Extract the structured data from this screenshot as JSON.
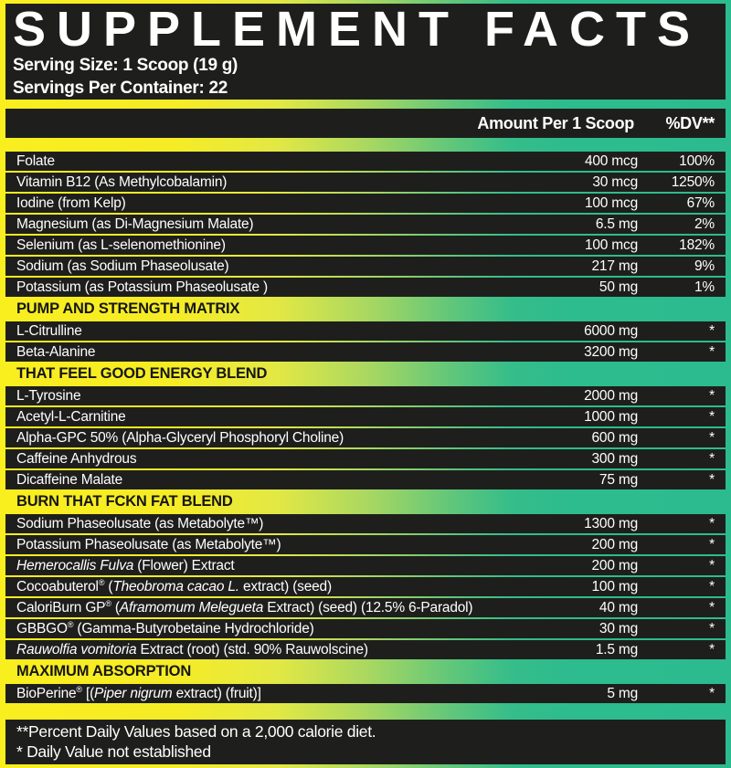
{
  "header": {
    "title": "SUPPLEMENT FACTS",
    "serving_size": "Serving Size: 1 Scoop (19 g)",
    "servings_per_container": "Servings Per Container: 22"
  },
  "columns": {
    "amount": "Amount Per 1 Scoop",
    "dv": "%DV**"
  },
  "colors": {
    "gradient_start": "#f9ee1e",
    "gradient_end": "#2cbb8f",
    "panel_black": "#1e1f1d",
    "text_white": "#ffffff",
    "section_text": "#161616"
  },
  "table": {
    "rows": [
      {
        "type": "item",
        "parts": [
          {
            "t": "Folate"
          }
        ],
        "amount": "400 mcg",
        "dv": "100%"
      },
      {
        "type": "item",
        "parts": [
          {
            "t": "Vitamin B12 (As Methylcobalamin)"
          }
        ],
        "amount": "30 mcg",
        "dv": "1250%"
      },
      {
        "type": "item",
        "parts": [
          {
            "t": "Iodine (from Kelp)"
          }
        ],
        "amount": "100 mcg",
        "dv": "67%"
      },
      {
        "type": "item",
        "parts": [
          {
            "t": "Magnesium (as Di-Magnesium Malate)"
          }
        ],
        "amount": "6.5 mg",
        "dv": "2%"
      },
      {
        "type": "item",
        "parts": [
          {
            "t": "Selenium (as L-selenomethionine)"
          }
        ],
        "amount": "100 mcg",
        "dv": "182%"
      },
      {
        "type": "item",
        "parts": [
          {
            "t": "Sodium (as Sodium Phaseolusate)"
          }
        ],
        "amount": "217 mg",
        "dv": "9%"
      },
      {
        "type": "item",
        "parts": [
          {
            "t": "Potassium (as Potassium Phaseolusate )"
          }
        ],
        "amount": "50 mg",
        "dv": "1%"
      },
      {
        "type": "section",
        "label": "PUMP AND STRENGTH MATRIX"
      },
      {
        "type": "item",
        "parts": [
          {
            "t": "L-Citrulline"
          }
        ],
        "amount": "6000 mg",
        "dv": "*"
      },
      {
        "type": "item",
        "parts": [
          {
            "t": "Beta-Alanine"
          }
        ],
        "amount": "3200 mg",
        "dv": "*"
      },
      {
        "type": "section",
        "label": "THAT FEEL GOOD ENERGY BLEND"
      },
      {
        "type": "item",
        "parts": [
          {
            "t": "L-Tyrosine"
          }
        ],
        "amount": "2000 mg",
        "dv": "*"
      },
      {
        "type": "item",
        "parts": [
          {
            "t": "Acetyl-L-Carnitine"
          }
        ],
        "amount": "1000 mg",
        "dv": "*"
      },
      {
        "type": "item",
        "parts": [
          {
            "t": "Alpha-GPC 50% (Alpha-Glyceryl Phosphoryl Choline)"
          }
        ],
        "amount": "600 mg",
        "dv": "*"
      },
      {
        "type": "item",
        "parts": [
          {
            "t": "Caffeine Anhydrous"
          }
        ],
        "amount": "300 mg",
        "dv": "*"
      },
      {
        "type": "item",
        "parts": [
          {
            "t": "Dicaffeine Malate"
          }
        ],
        "amount": "75 mg",
        "dv": "*"
      },
      {
        "type": "section",
        "label": "BURN THAT FCKN FAT BLEND"
      },
      {
        "type": "item",
        "parts": [
          {
            "t": "Sodium Phaseolusate (as Metabolyte™)"
          }
        ],
        "amount": "1300 mg",
        "dv": "*"
      },
      {
        "type": "item",
        "parts": [
          {
            "t": "Potassium Phaseolusate (as Metabolyte™)"
          }
        ],
        "amount": "200 mg",
        "dv": "*"
      },
      {
        "type": "item",
        "parts": [
          {
            "t": "Hemerocallis Fulva",
            "i": true
          },
          {
            "t": " (Flower) Extract"
          }
        ],
        "amount": "200 mg",
        "dv": "*"
      },
      {
        "type": "item",
        "parts": [
          {
            "t": "Cocoabuterol"
          },
          {
            "t": "®",
            "s": true
          },
          {
            "t": " ("
          },
          {
            "t": "Theobroma cacao L.",
            "i": true
          },
          {
            "t": " extract) (seed)"
          }
        ],
        "amount": "100 mg",
        "dv": "*"
      },
      {
        "type": "item",
        "parts": [
          {
            "t": "CaloriBurn GP"
          },
          {
            "t": "®",
            "s": true
          },
          {
            "t": " ("
          },
          {
            "t": "Aframomum Melegueta",
            "i": true
          },
          {
            "t": " Extract) (seed) (12.5% 6-Paradol)"
          }
        ],
        "amount": "40 mg",
        "dv": "*"
      },
      {
        "type": "item",
        "parts": [
          {
            "t": "GBBGO"
          },
          {
            "t": "®",
            "s": true
          },
          {
            "t": " (Gamma-Butyrobetaine Hydrochloride)"
          }
        ],
        "amount": "30 mg",
        "dv": "*"
      },
      {
        "type": "item",
        "parts": [
          {
            "t": "Rauwolfia vomitoria",
            "i": true
          },
          {
            "t": " Extract (root) (std. 90% Rauwolscine)"
          }
        ],
        "amount": "1.5 mg",
        "dv": "*"
      },
      {
        "type": "section",
        "label": "MAXIMUM ABSORPTION"
      },
      {
        "type": "item",
        "parts": [
          {
            "t": "BioPerine"
          },
          {
            "t": "®",
            "s": true
          },
          {
            "t": " [("
          },
          {
            "t": "Piper nigrum",
            "i": true
          },
          {
            "t": " extract) (fruit)]"
          }
        ],
        "amount": "5 mg",
        "dv": "*"
      }
    ]
  },
  "footnotes": [
    "**Percent Daily Values based on a 2,000 calorie diet.",
    "* Daily Value not established"
  ]
}
